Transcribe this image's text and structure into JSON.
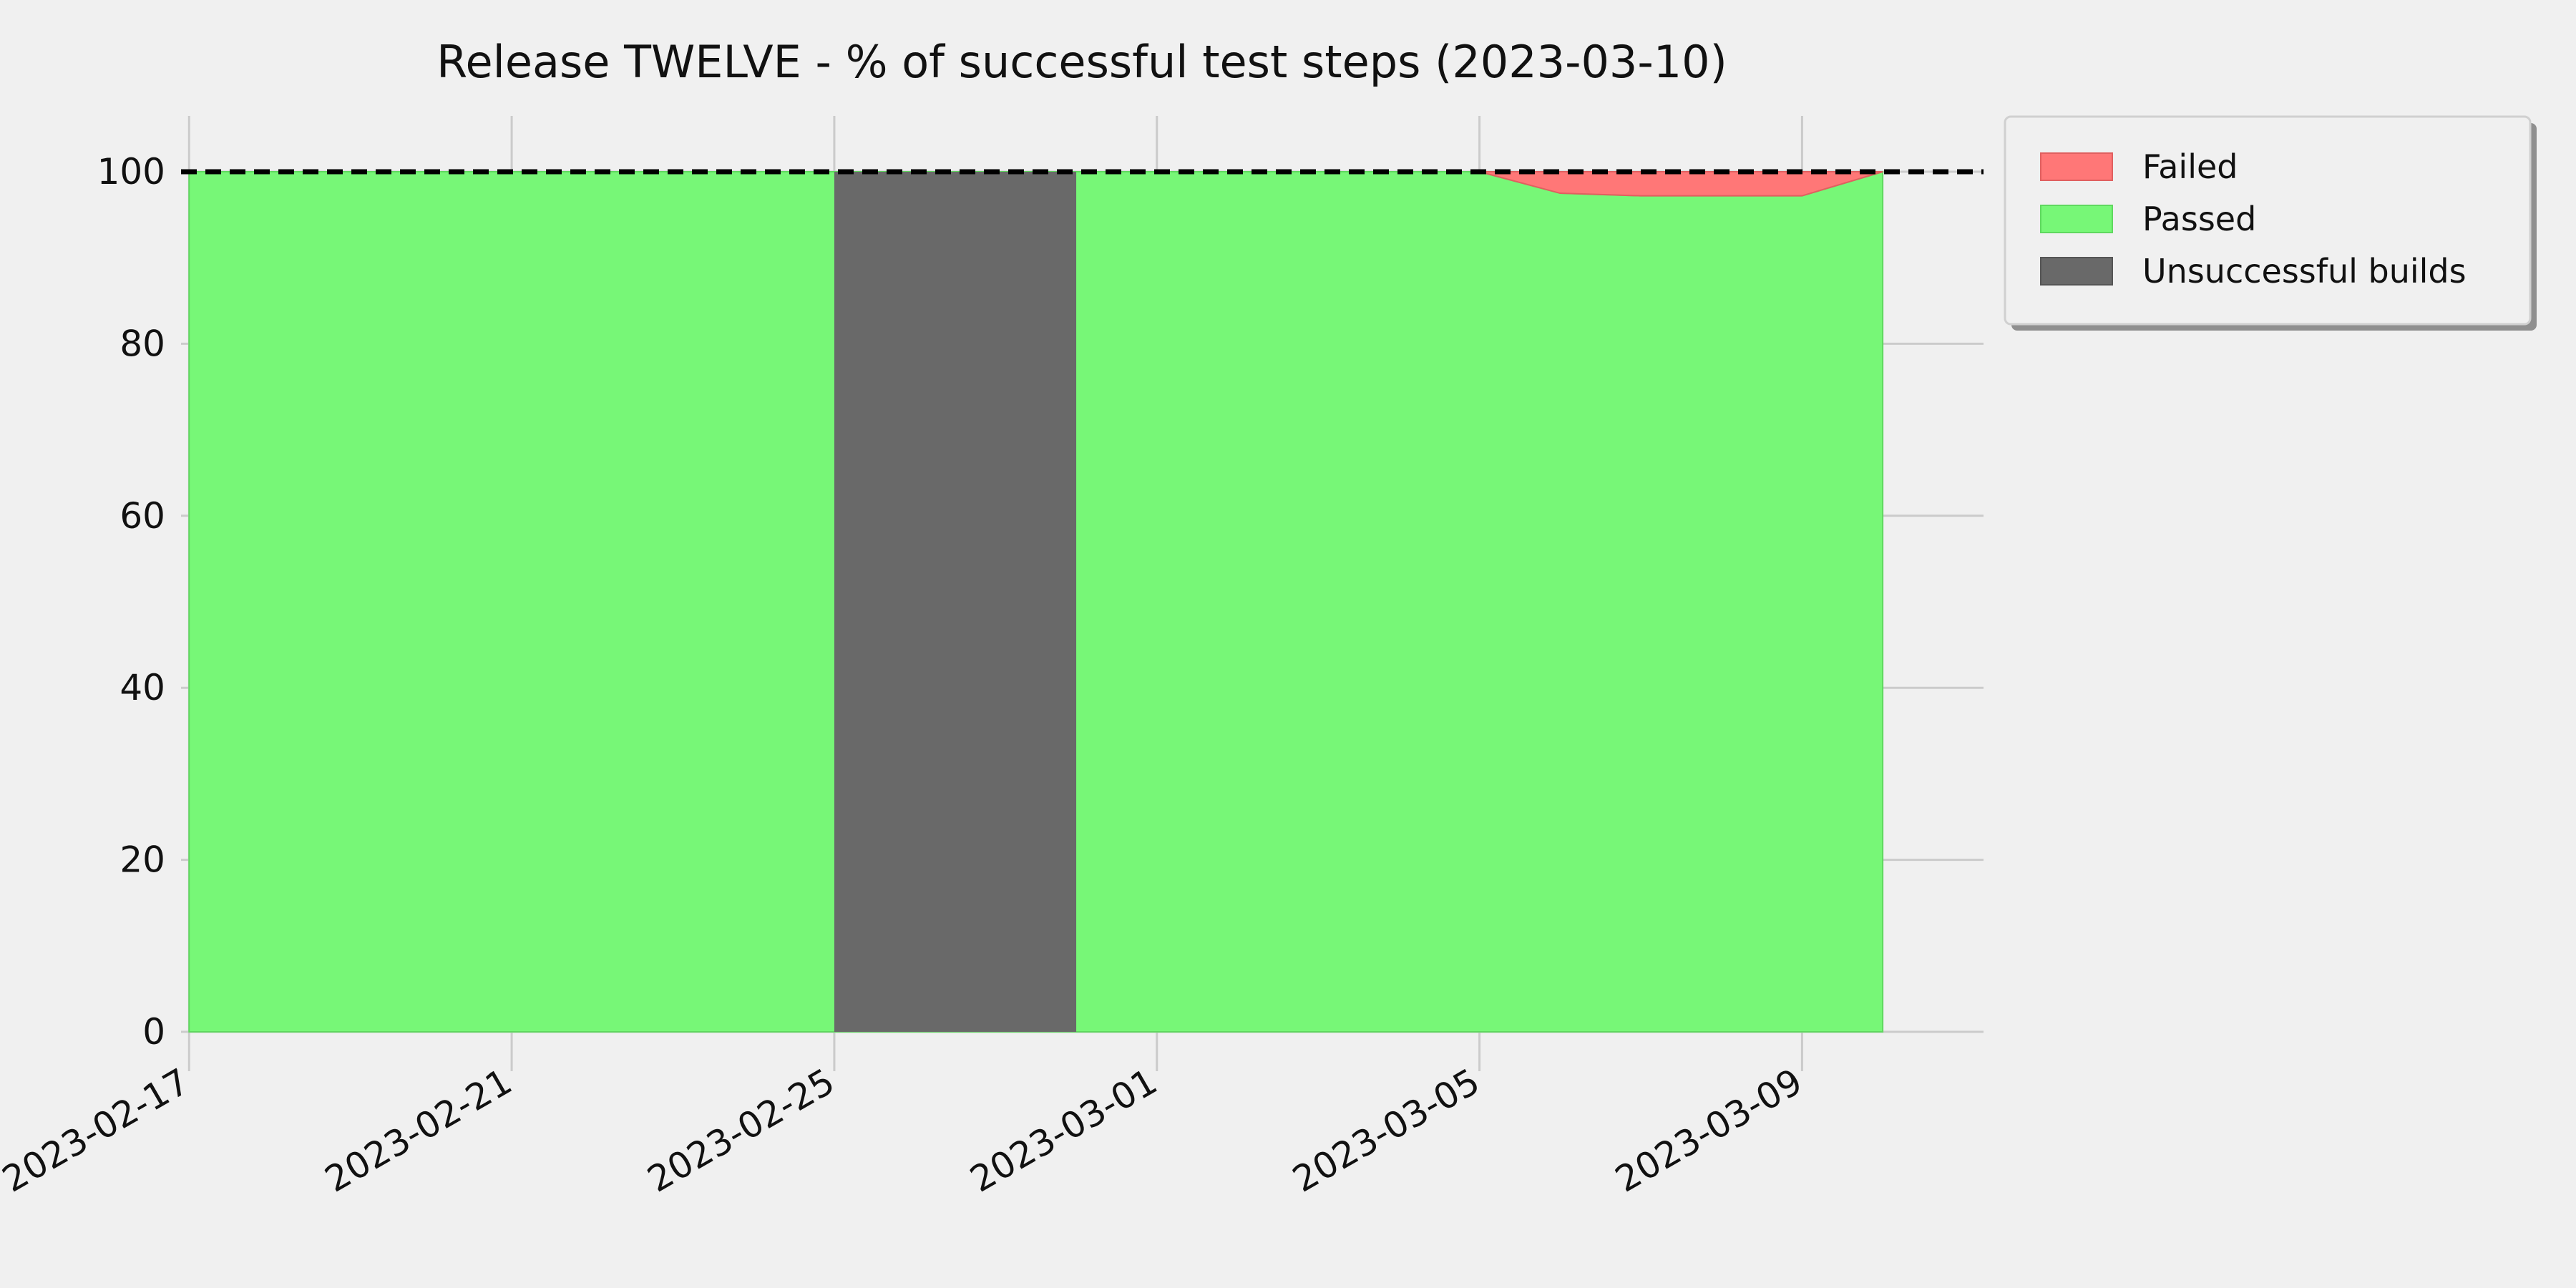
{
  "chart_data": {
    "type": "area",
    "title": "Release TWELVE - % of successful test steps (2023-03-10)",
    "xlabel": "",
    "ylabel": "",
    "x_ticks": [
      "2023-02-17",
      "2023-02-21",
      "2023-02-25",
      "2023-03-01",
      "2023-03-05",
      "2023-03-09"
    ],
    "y_ticks": [
      "0",
      "20",
      "40",
      "60",
      "80",
      "100"
    ],
    "ylim": [
      0,
      100
    ],
    "xlim": [
      "2023-02-16",
      "2023-03-11"
    ],
    "grid": true,
    "legend_position": "outside-top-right",
    "reference_line": {
      "y": 100,
      "style": "dashed",
      "color": "#000000"
    },
    "series": [
      {
        "name": "Passed",
        "color": "#77f777",
        "points": [
          {
            "x": "2023-02-17",
            "y": 100
          },
          {
            "x": "2023-02-25",
            "y": 100
          },
          {
            "x": "2023-02-28",
            "y": 100
          },
          {
            "x": "2023-03-05",
            "y": 100
          },
          {
            "x": "2023-03-06",
            "y": 97.5
          },
          {
            "x": "2023-03-07",
            "y": 97.2
          },
          {
            "x": "2023-03-08",
            "y": 97.2
          },
          {
            "x": "2023-03-09",
            "y": 97.2
          },
          {
            "x": "2023-03-10",
            "y": 100
          }
        ]
      },
      {
        "name": "Failed",
        "color": "#ff7777",
        "points": [
          {
            "x": "2023-03-05",
            "y": 0
          },
          {
            "x": "2023-03-06",
            "y": 2.5
          },
          {
            "x": "2023-03-07",
            "y": 2.8
          },
          {
            "x": "2023-03-08",
            "y": 2.8
          },
          {
            "x": "2023-03-09",
            "y": 2.8
          },
          {
            "x": "2023-03-10",
            "y": 0
          }
        ]
      },
      {
        "name": "Unsuccessful builds",
        "color": "#696969",
        "range": [
          "2023-02-25",
          "2023-02-28"
        ],
        "y": 100
      }
    ],
    "legend": [
      "Failed",
      "Passed",
      "Unsuccessful builds"
    ]
  }
}
